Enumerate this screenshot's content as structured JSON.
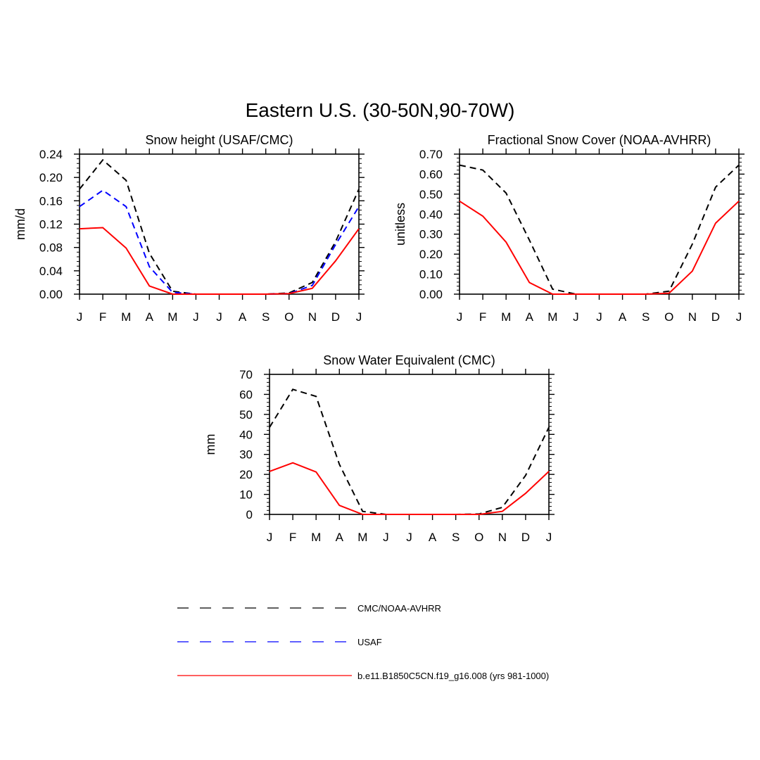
{
  "figure": {
    "title": "Eastern U.S. (30-50N,90-70W)"
  },
  "legend": {
    "items": [
      {
        "label": "CMC/NOAA-AVHRR",
        "color": "#000000",
        "style": "dashed"
      },
      {
        "label": "USAF",
        "color": "#0000ff",
        "style": "dashed"
      },
      {
        "label": "b.e11.B1850C5CN.f19_g16.008 (yrs 981-1000)",
        "color": "#ff0000",
        "style": "solid"
      }
    ]
  },
  "chart_data": [
    {
      "type": "line",
      "title": "Snow height (USAF/CMC)",
      "xlabel": "",
      "ylabel": "mm/d",
      "categories": [
        "J",
        "F",
        "M",
        "A",
        "M",
        "J",
        "J",
        "A",
        "S",
        "O",
        "N",
        "D",
        "J"
      ],
      "ylim": [
        0,
        0.24
      ],
      "yticks": [
        "0.00",
        "0.04",
        "0.08",
        "0.12",
        "0.16",
        "0.20",
        "0.24"
      ],
      "grid": false,
      "series": [
        {
          "name": "CMC/NOAA-AVHRR",
          "color": "#000000",
          "style": "dashed",
          "values": [
            0.18,
            0.23,
            0.195,
            0.07,
            0.005,
            0.0,
            0.0,
            0.0,
            0.0,
            0.002,
            0.02,
            0.09,
            0.18
          ]
        },
        {
          "name": "USAF",
          "color": "#0000ff",
          "style": "dashed",
          "values": [
            0.15,
            0.178,
            0.15,
            0.047,
            0.003,
            0.0,
            0.0,
            0.0,
            0.0,
            0.001,
            0.015,
            0.085,
            0.15
          ]
        },
        {
          "name": "b.e11.B1850C5CN.f19_g16.008 (yrs 981-1000)",
          "color": "#ff0000",
          "style": "solid",
          "values": [
            0.112,
            0.114,
            0.079,
            0.014,
            0.0,
            0.0,
            0.0,
            0.0,
            0.0,
            0.001,
            0.01,
            0.057,
            0.112
          ]
        }
      ]
    },
    {
      "type": "line",
      "title": "Fractional Snow Cover (NOAA-AVHRR)",
      "xlabel": "",
      "ylabel": "unitless",
      "categories": [
        "J",
        "F",
        "M",
        "A",
        "M",
        "J",
        "J",
        "A",
        "S",
        "O",
        "N",
        "D",
        "J"
      ],
      "ylim": [
        0,
        0.7
      ],
      "yticks": [
        "0.00",
        "0.10",
        "0.20",
        "0.30",
        "0.40",
        "0.50",
        "0.60",
        "0.70"
      ],
      "grid": false,
      "series": [
        {
          "name": "CMC/NOAA-AVHRR",
          "color": "#000000",
          "style": "dashed",
          "values": [
            0.645,
            0.62,
            0.505,
            0.27,
            0.025,
            0.0,
            0.0,
            0.0,
            0.0,
            0.015,
            0.25,
            0.535,
            0.645
          ]
        },
        {
          "name": "b.e11.B1850C5CN.f19_g16.008 (yrs 981-1000)",
          "color": "#ff0000",
          "style": "solid",
          "values": [
            0.465,
            0.39,
            0.26,
            0.058,
            0.0,
            0.0,
            0.0,
            0.0,
            0.0,
            0.005,
            0.115,
            0.355,
            0.465
          ]
        }
      ]
    },
    {
      "type": "line",
      "title": "Snow Water Equivalent (CMC)",
      "xlabel": "",
      "ylabel": "mm",
      "categories": [
        "J",
        "F",
        "M",
        "A",
        "M",
        "J",
        "J",
        "A",
        "S",
        "O",
        "N",
        "D",
        "J"
      ],
      "ylim": [
        0,
        70
      ],
      "yticks": [
        "0",
        "10",
        "20",
        "30",
        "40",
        "50",
        "60",
        "70"
      ],
      "grid": false,
      "series": [
        {
          "name": "CMC/NOAA-AVHRR",
          "color": "#000000",
          "style": "dashed",
          "values": [
            43.5,
            62.5,
            59.0,
            25.0,
            1.5,
            0.0,
            0.0,
            0.0,
            0.0,
            0.2,
            3.5,
            19.5,
            43.5
          ]
        },
        {
          "name": "b.e11.B1850C5CN.f19_g16.008 (yrs 981-1000)",
          "color": "#ff0000",
          "style": "solid",
          "values": [
            21.5,
            25.8,
            21.2,
            4.5,
            0.0,
            0.0,
            0.0,
            0.0,
            0.0,
            0.0,
            1.5,
            10.5,
            21.5
          ]
        }
      ]
    }
  ]
}
